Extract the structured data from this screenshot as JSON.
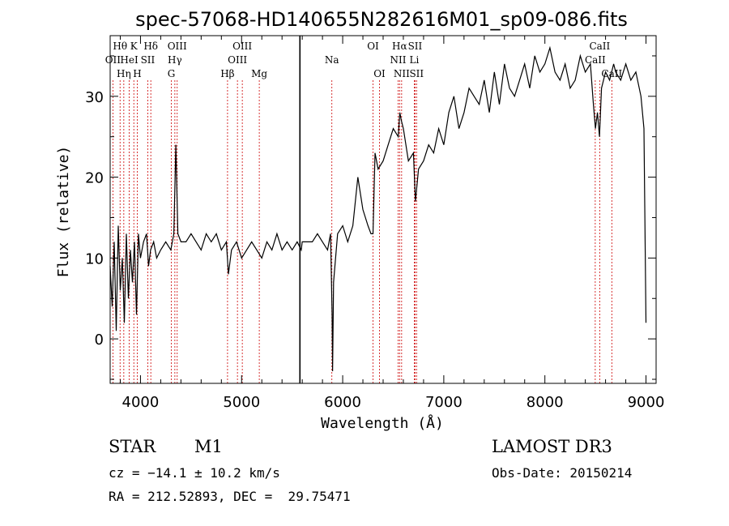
{
  "chart_data": {
    "type": "line",
    "title": "spec-57068-HD140655N282616M01_sp09-086.fits",
    "xlabel": "Wavelength (Å)",
    "ylabel": "Flux (relative)",
    "xlim": [
      3700,
      9100
    ],
    "ylim": [
      -5.5,
      37.5
    ],
    "xticks": [
      4000,
      5000,
      6000,
      7000,
      8000,
      9000
    ],
    "yticks": [
      0,
      10,
      20,
      30
    ],
    "series": [
      {
        "name": "spectrum",
        "x": [
          3700,
          3720,
          3740,
          3760,
          3780,
          3800,
          3820,
          3840,
          3860,
          3880,
          3900,
          3920,
          3940,
          3960,
          3980,
          4000,
          4030,
          4060,
          4080,
          4100,
          4130,
          4160,
          4200,
          4250,
          4300,
          4330,
          4350,
          4370,
          4400,
          4450,
          4500,
          4550,
          4600,
          4650,
          4700,
          4750,
          4800,
          4850,
          4870,
          4900,
          4950,
          5000,
          5050,
          5100,
          5150,
          5200,
          5250,
          5300,
          5350,
          5400,
          5450,
          5500,
          5550,
          5590,
          5600,
          5650,
          5700,
          5750,
          5800,
          5850,
          5880,
          5895,
          5900,
          5910,
          5950,
          6000,
          6050,
          6100,
          6150,
          6200,
          6250,
          6280,
          6300,
          6320,
          6350,
          6400,
          6450,
          6500,
          6550,
          6565,
          6580,
          6600,
          6650,
          6700,
          6720,
          6750,
          6800,
          6850,
          6900,
          6950,
          7000,
          7050,
          7100,
          7150,
          7200,
          7250,
          7300,
          7350,
          7400,
          7450,
          7500,
          7550,
          7600,
          7650,
          7700,
          7750,
          7800,
          7850,
          7900,
          7950,
          8000,
          8050,
          8100,
          8150,
          8200,
          8250,
          8300,
          8350,
          8400,
          8450,
          8480,
          8500,
          8520,
          8540,
          8560,
          8600,
          8640,
          8680,
          8700,
          8750,
          8800,
          8850,
          8900,
          8950,
          8980,
          9000
        ],
        "y": [
          9,
          4,
          12,
          1,
          14,
          6,
          10,
          2,
          13,
          5,
          11,
          7,
          12,
          3,
          13,
          10,
          12,
          13,
          9,
          11,
          12,
          10,
          11,
          12,
          11,
          13,
          24,
          13,
          12,
          12,
          13,
          12,
          11,
          13,
          12,
          13,
          11,
          12,
          8,
          11,
          12,
          10,
          11,
          12,
          11,
          10,
          12,
          11,
          13,
          11,
          12,
          11,
          12,
          11,
          12,
          12,
          12,
          13,
          12,
          11,
          13,
          3,
          -4,
          7,
          13,
          14,
          12,
          14,
          20,
          16,
          14,
          13,
          13,
          23,
          21,
          22,
          24,
          26,
          25,
          28,
          27,
          26,
          22,
          23,
          17,
          21,
          22,
          24,
          23,
          26,
          24,
          28,
          30,
          26,
          28,
          31,
          30,
          29,
          32,
          28,
          33,
          29,
          34,
          31,
          30,
          32,
          34,
          31,
          35,
          33,
          34,
          36,
          33,
          32,
          34,
          31,
          32,
          35,
          33,
          34,
          29,
          26,
          28,
          25,
          31,
          33,
          32,
          34,
          33,
          32,
          34,
          32,
          33,
          30,
          26,
          2
        ]
      }
    ],
    "emission_lines": [
      {
        "name": "OII",
        "wavelength": 3727,
        "row": 2
      },
      {
        "name": "Hθ",
        "wavelength": 3798,
        "row": 1
      },
      {
        "name": "Hη",
        "wavelength": 3835,
        "row": 3
      },
      {
        "name": "HeI",
        "wavelength": 3889,
        "row": 2
      },
      {
        "name": "K",
        "wavelength": 3934,
        "row": 1
      },
      {
        "name": "H",
        "wavelength": 3968,
        "row": 3
      },
      {
        "name": "SII",
        "wavelength": 4072,
        "row": 2
      },
      {
        "name": "Hδ",
        "wavelength": 4102,
        "row": 1
      },
      {
        "name": "G",
        "wavelength": 4305,
        "row": 3
      },
      {
        "name": "Hγ",
        "wavelength": 4340,
        "row": 2
      },
      {
        "name": "OIII",
        "wavelength": 4363,
        "row": 1
      },
      {
        "name": "Hβ",
        "wavelength": 4861,
        "row": 3
      },
      {
        "name": "OIII",
        "wavelength": 4959,
        "row": 2
      },
      {
        "name": "OIII",
        "wavelength": 5007,
        "row": 1
      },
      {
        "name": "Mg",
        "wavelength": 5175,
        "row": 3
      },
      {
        "name": "Na",
        "wavelength": 5893,
        "row": 2
      },
      {
        "name": "OI",
        "wavelength": 6300,
        "row": 1
      },
      {
        "name": "OI",
        "wavelength": 6364,
        "row": 3
      },
      {
        "name": "NII",
        "wavelength": 6548,
        "row": 2
      },
      {
        "name": "Hα",
        "wavelength": 6563,
        "row": 1
      },
      {
        "name": "NII",
        "wavelength": 6583,
        "row": 3
      },
      {
        "name": "Li",
        "wavelength": 6708,
        "row": 2
      },
      {
        "name": "SII",
        "wavelength": 6716,
        "row": 1
      },
      {
        "name": "SII",
        "wavelength": 6731,
        "row": 3
      },
      {
        "name": "CaII",
        "wavelength": 8498,
        "row": 2
      },
      {
        "name": "CaII",
        "wavelength": 8542,
        "row": 1
      },
      {
        "name": "CaII",
        "wavelength": 8662,
        "row": 3
      }
    ],
    "markers": [
      5577
    ]
  },
  "info": {
    "object_class": "STAR",
    "subclass": "M1",
    "survey": "LAMOST DR3",
    "cz": "cz = −14.1 ± 10.2 km/s",
    "obs_date": "Obs-Date: 20150214",
    "coords": "RA = 212.52893, DEC =  29.75471"
  },
  "colors": {
    "spectrum": "#000000",
    "line_marker": "#cc0000",
    "axes": "#000000"
  }
}
